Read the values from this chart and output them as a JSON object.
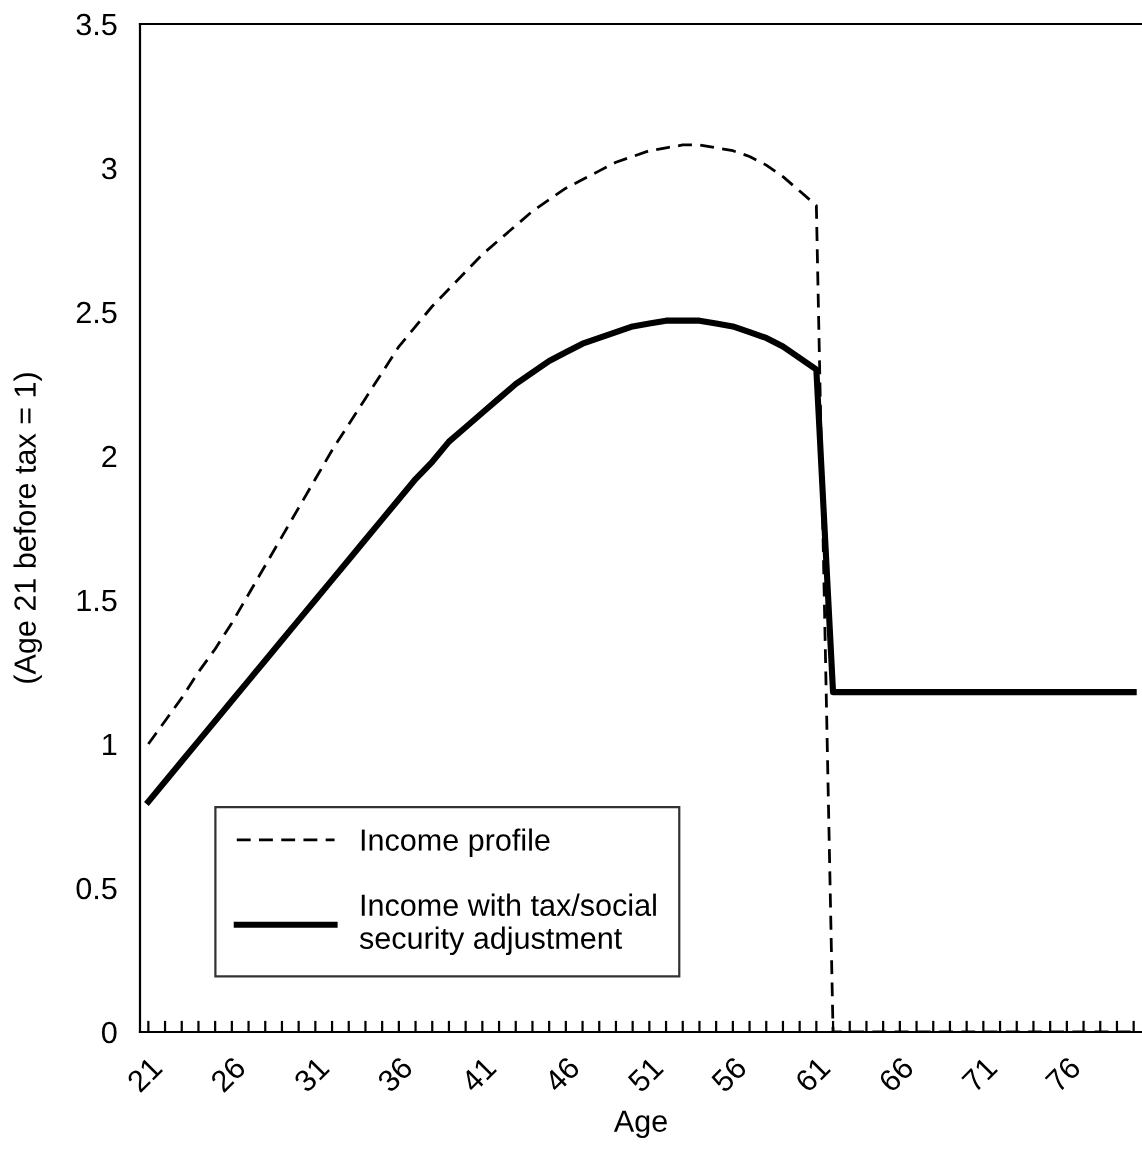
{
  "chart_data": {
    "type": "line",
    "xlabel": "Age",
    "ylabel": "(Age 21 before tax = 1)",
    "x": [
      21,
      22,
      23,
      24,
      25,
      26,
      27,
      28,
      29,
      30,
      31,
      32,
      33,
      34,
      35,
      36,
      37,
      38,
      39,
      40,
      41,
      42,
      43,
      44,
      45,
      46,
      47,
      48,
      49,
      50,
      51,
      52,
      53,
      54,
      55,
      56,
      57,
      58,
      59,
      60,
      61,
      62,
      63,
      64,
      65,
      66,
      67,
      68,
      69,
      70,
      71,
      72,
      73,
      74,
      75,
      76,
      77,
      78,
      79,
      80
    ],
    "series": [
      {
        "name": "Income profile",
        "color": "#000000",
        "line_style": "dashed",
        "values": [
          1.0,
          1.08,
          1.16,
          1.25,
          1.33,
          1.42,
          1.52,
          1.62,
          1.72,
          1.82,
          1.92,
          2.02,
          2.11,
          2.2,
          2.29,
          2.38,
          2.45,
          2.52,
          2.58,
          2.64,
          2.7,
          2.75,
          2.8,
          2.85,
          2.89,
          2.93,
          2.96,
          2.99,
          3.02,
          3.04,
          3.06,
          3.07,
          3.08,
          3.08,
          3.07,
          3.06,
          3.04,
          3.01,
          2.97,
          2.92,
          2.87,
          0,
          0,
          0,
          0,
          0,
          0,
          0,
          0,
          0,
          0,
          0,
          0,
          0,
          0,
          0,
          0,
          0,
          0,
          0
        ]
      },
      {
        "name": "Income with tax/social\nsecurity adjustment",
        "color": "#000000",
        "line_style": "solid",
        "values": [
          0.8,
          0.87,
          0.94,
          1.01,
          1.08,
          1.15,
          1.22,
          1.29,
          1.36,
          1.43,
          1.5,
          1.57,
          1.64,
          1.71,
          1.78,
          1.85,
          1.92,
          1.98,
          2.05,
          2.1,
          2.15,
          2.2,
          2.25,
          2.29,
          2.33,
          2.36,
          2.39,
          2.41,
          2.43,
          2.45,
          2.46,
          2.47,
          2.47,
          2.47,
          2.46,
          2.45,
          2.43,
          2.41,
          2.38,
          2.34,
          2.3,
          1.18,
          1.18,
          1.18,
          1.18,
          1.18,
          1.18,
          1.18,
          1.18,
          1.18,
          1.18,
          1.18,
          1.18,
          1.18,
          1.18,
          1.18,
          1.18,
          1.18,
          1.18,
          1.18
        ]
      }
    ],
    "xlim": [
      20.5,
      80.5
    ],
    "ylim": [
      0,
      3.5
    ],
    "yticks": [
      0,
      0.5,
      1,
      1.5,
      2,
      2.5,
      3,
      3.5
    ],
    "xticks": [
      21,
      {
        "value": 22,
        "label": null
      },
      {
        "value": 23,
        "label": null
      },
      {
        "value": 24,
        "label": null
      },
      {
        "value": 25,
        "label": null
      },
      26,
      {
        "value": 27,
        "label": null
      },
      {
        "value": 28,
        "label": null
      },
      {
        "value": 29,
        "label": null
      },
      {
        "value": 30,
        "label": null
      },
      31,
      {
        "value": 32,
        "label": null
      },
      {
        "value": 33,
        "label": null
      },
      {
        "value": 34,
        "label": null
      },
      {
        "value": 35,
        "label": null
      },
      36,
      {
        "value": 37,
        "label": null
      },
      {
        "value": 38,
        "label": null
      },
      {
        "value": 39,
        "label": null
      },
      {
        "value": 40,
        "label": null
      },
      41,
      {
        "value": 42,
        "label": null
      },
      {
        "value": 43,
        "label": null
      },
      {
        "value": 44,
        "label": null
      },
      {
        "value": 45,
        "label": null
      },
      46,
      {
        "value": 47,
        "label": null
      },
      {
        "value": 48,
        "label": null
      },
      {
        "value": 49,
        "label": null
      },
      {
        "value": 50,
        "label": null
      },
      51,
      {
        "value": 52,
        "label": null
      },
      {
        "value": 53,
        "label": null
      },
      {
        "value": 54,
        "label": null
      },
      {
        "value": 55,
        "label": null
      },
      56,
      {
        "value": 57,
        "label": null
      },
      {
        "value": 58,
        "label": null
      },
      {
        "value": 59,
        "label": null
      },
      {
        "value": 60,
        "label": null
      },
      61,
      {
        "value": 62,
        "label": null
      },
      {
        "value": 63,
        "label": null
      },
      {
        "value": 64,
        "label": null
      },
      {
        "value": 65,
        "label": null
      },
      66,
      {
        "value": 67,
        "label": null
      },
      {
        "value": 68,
        "label": null
      },
      {
        "value": 69,
        "label": null
      },
      {
        "value": 70,
        "label": null
      },
      71,
      {
        "value": 72,
        "label": null
      },
      {
        "value": 73,
        "label": null
      },
      {
        "value": 74,
        "label": null
      },
      {
        "value": 75,
        "label": null
      },
      76,
      {
        "value": 77,
        "label": null
      },
      {
        "value": 78,
        "label": null
      },
      {
        "value": 79,
        "label": null
      },
      {
        "value": 80,
        "label": null
      }
    ],
    "grid": false,
    "legend": "bottom left",
    "marker": "none"
  }
}
